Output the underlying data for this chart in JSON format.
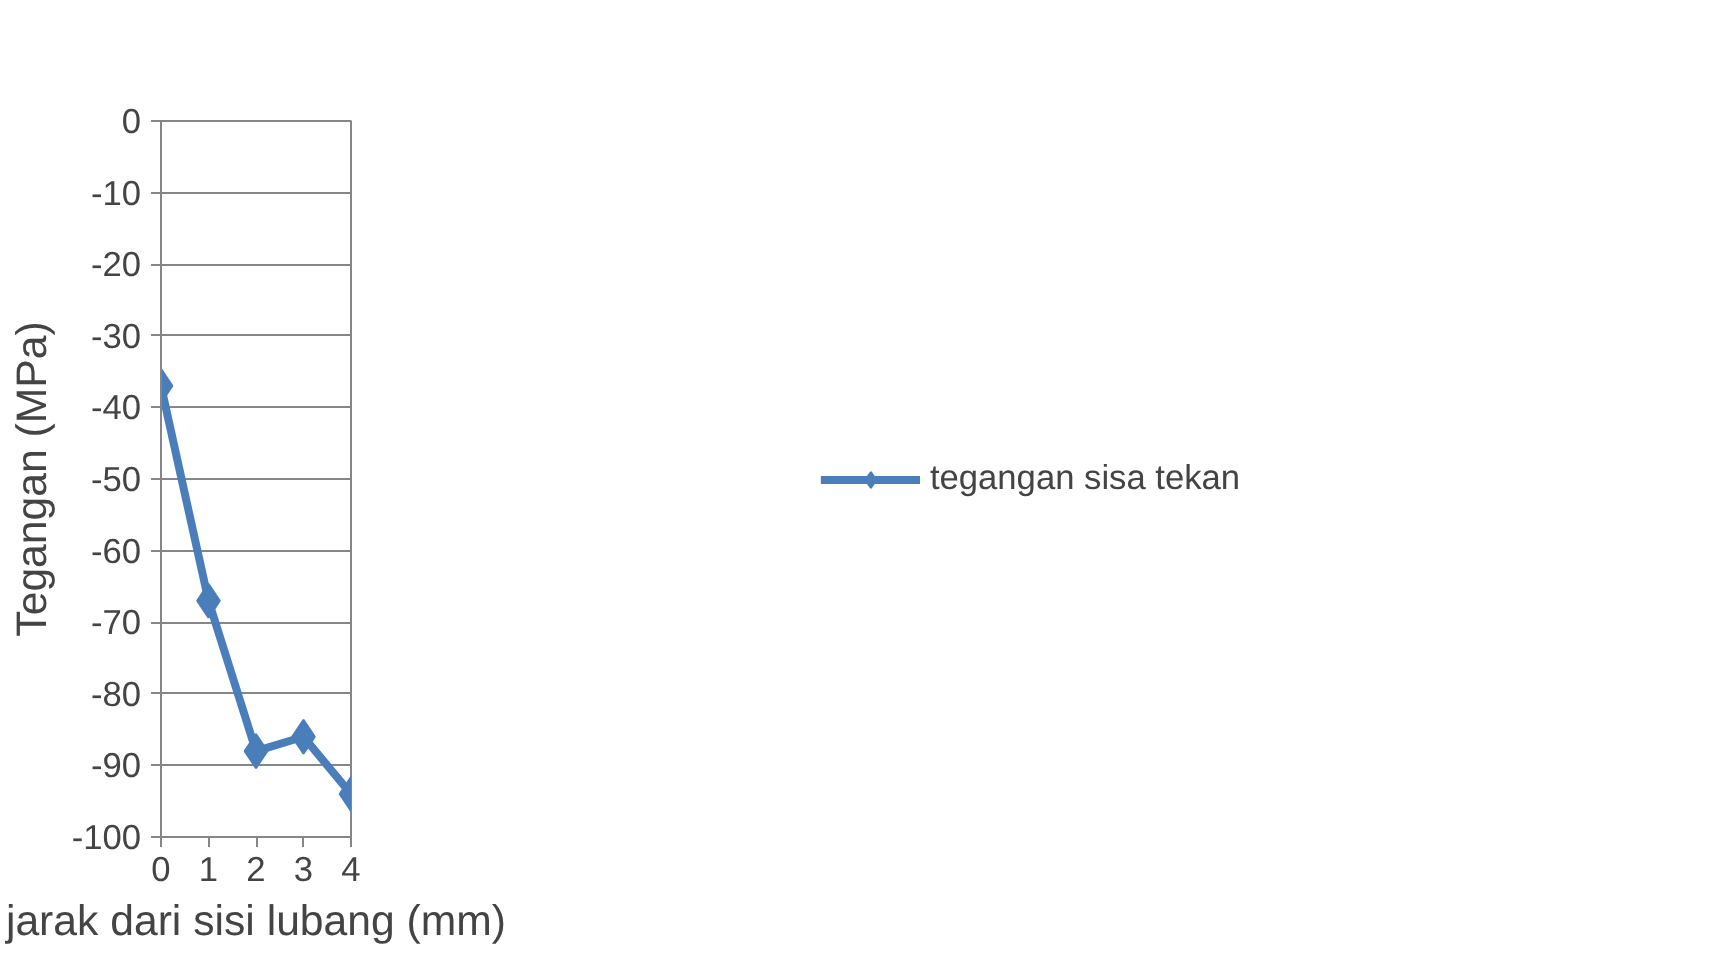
{
  "chart_data": {
    "type": "line",
    "xlabel": "jarak dari sisi lubang (mm)",
    "ylabel": "Tegangan (MPa)",
    "x": [
      0,
      1,
      2,
      3,
      4
    ],
    "series": [
      {
        "name": "tegangan sisa tekan",
        "color": "#4a7ebb",
        "values": [
          -37,
          -67,
          -88,
          -86,
          -94
        ]
      }
    ],
    "xlim": [
      0,
      4
    ],
    "xticks": [
      0,
      1,
      2,
      3,
      4
    ],
    "ylim": [
      -100,
      0
    ],
    "yticks": [
      0,
      -10,
      -20,
      -30,
      -40,
      -50,
      -60,
      -70,
      -80,
      -90,
      -100
    ],
    "grid": "y",
    "legend": "right",
    "marker": "diamond",
    "line_style": "solid"
  }
}
